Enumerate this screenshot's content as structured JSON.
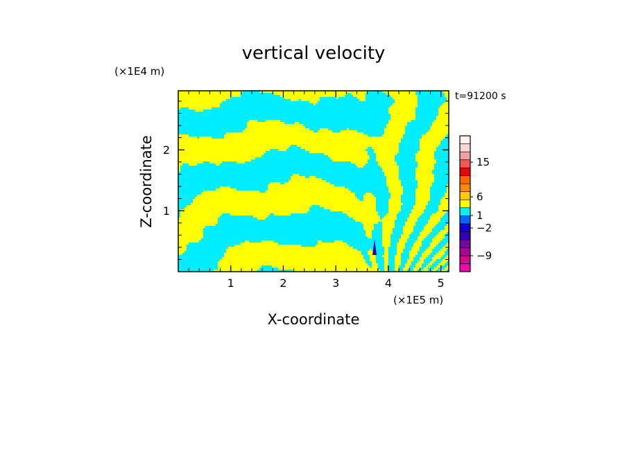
{
  "chart_data": {
    "type": "heatmap",
    "title": "vertical velocity",
    "xlabel": "X-coordinate",
    "ylabel": "Z-coordinate",
    "x_unit": "(×1E5 m)",
    "y_unit": "(×1E4 m)",
    "time_label": "t=91200 s",
    "xlim": [
      0,
      5.15
    ],
    "ylim": [
      0,
      2.97
    ],
    "x_ticks": [
      1,
      2,
      3,
      4,
      5
    ],
    "y_ticks": [
      1,
      2
    ],
    "x_tick_labels": [
      "1",
      "2",
      "3",
      "4",
      "5"
    ],
    "y_tick_labels": [
      "1",
      "2"
    ],
    "grid": false,
    "field_colors": {
      "positive": "#ffff00",
      "negative": "#00eeff"
    },
    "legend": {
      "placement": "right",
      "levels": [
        {
          "color": "#ff00aa"
        },
        {
          "color": "#dd0088"
        },
        {
          "color": "#aa0099"
        },
        {
          "color": "#7700aa"
        },
        {
          "color": "#3300bb"
        },
        {
          "color": "#1100cc"
        },
        {
          "color": "#0066ff"
        },
        {
          "color": "#00eeff"
        },
        {
          "color": "#ffff00"
        },
        {
          "color": "#ffcc00"
        },
        {
          "color": "#ff8800"
        },
        {
          "color": "#ff6600"
        },
        {
          "color": "#ee0000"
        },
        {
          "color": "#ff5555"
        },
        {
          "color": "#f0a0a0"
        },
        {
          "color": "#f8d8d8"
        },
        {
          "color": "#fff4f0"
        }
      ],
      "labels": [
        {
          "text": "15",
          "value": 15
        },
        {
          "text": "6",
          "value": 6
        },
        {
          "text": "1",
          "value": 1
        },
        {
          "text": "−2",
          "value": -2
        },
        {
          "text": "−9",
          "value": -9
        }
      ]
    }
  }
}
